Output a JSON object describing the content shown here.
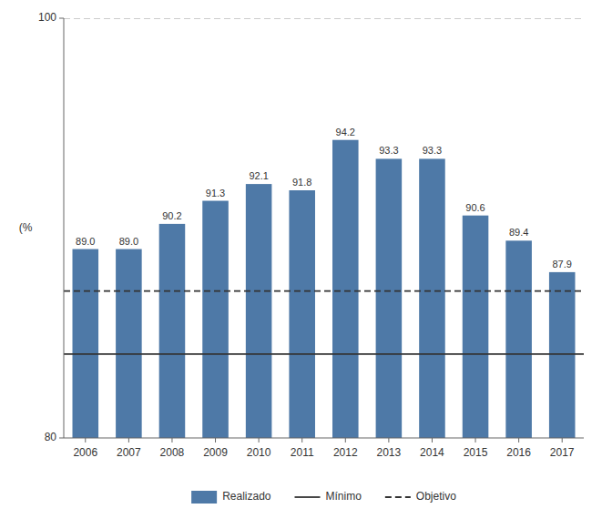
{
  "chart_data": {
    "type": "bar",
    "ylabel": "(%",
    "categories": [
      "2006",
      "2007",
      "2008",
      "2009",
      "2010",
      "2011",
      "2012",
      "2013",
      "2014",
      "2015",
      "2016",
      "2017"
    ],
    "series": [
      {
        "name": "Realizado",
        "color": "#4e79a7",
        "values": [
          89.0,
          89.0,
          90.2,
          91.3,
          92.1,
          91.8,
          94.2,
          93.3,
          93.3,
          90.6,
          89.4,
          87.9
        ],
        "value_labels": [
          "89.0",
          "89.0",
          "90.2",
          "91.3",
          "92.1",
          "91.8",
          "94.2",
          "93.3",
          "93.3",
          "90.6",
          "89.4",
          "87.9"
        ]
      }
    ],
    "reference_lines": [
      {
        "name": "Mínimo",
        "value": 84.0,
        "line_style": "solid",
        "color": "#333333"
      },
      {
        "name": "Objetivo",
        "value": 87.0,
        "line_style": "dashed",
        "color": "#333333"
      },
      {
        "value": 100,
        "line_style": "dashed",
        "color": "#999999"
      }
    ],
    "ylim": [
      80,
      100
    ],
    "yticks": [
      80,
      100
    ],
    "grid": false,
    "data_labels": true,
    "legend": "bottom"
  }
}
